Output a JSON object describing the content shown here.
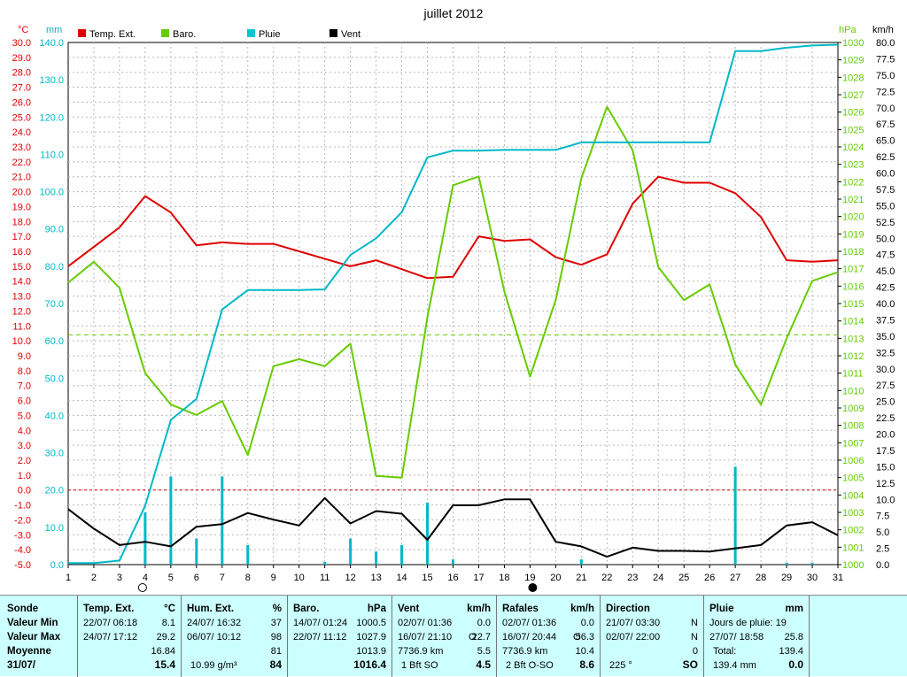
{
  "title": "juillet 2012",
  "axes": {
    "temp": {
      "unit": "°C",
      "min": -5,
      "max": 30,
      "step": 1,
      "color": "#e00000"
    },
    "rain": {
      "unit": "mm",
      "min": 0,
      "max": 140,
      "step": 10,
      "color": "#00b8c8"
    },
    "baro": {
      "unit": "hPa",
      "min": 1000,
      "max": 1030,
      "step": 1,
      "color": "#66cc00"
    },
    "wind": {
      "unit": "km/h",
      "min": 0,
      "max": 80,
      "step": 2.5,
      "color": "#000000"
    }
  },
  "legend": {
    "temp": {
      "label": "Temp. Ext.",
      "color": "#e00000"
    },
    "baro": {
      "label": "Baro.",
      "color": "#66cc00"
    },
    "rain": {
      "label": "Pluie",
      "color": "#00c8d0"
    },
    "wind": {
      "label": "Vent",
      "color": "#000000"
    }
  },
  "chart_data": {
    "type": "line",
    "title": "juillet 2012",
    "x": [
      1,
      2,
      3,
      4,
      5,
      6,
      7,
      8,
      9,
      10,
      11,
      12,
      13,
      14,
      15,
      16,
      17,
      18,
      19,
      20,
      21,
      22,
      23,
      24,
      25,
      26,
      27,
      28,
      29,
      30,
      31
    ],
    "xlim": [
      1,
      31
    ],
    "grid": true,
    "legend_position": "top-left",
    "series": [
      {
        "name": "Temp. Ext.",
        "axis": "temp",
        "color": "#e00000",
        "values": [
          15.0,
          16.3,
          17.6,
          19.7,
          18.6,
          16.4,
          16.6,
          16.5,
          16.5,
          16.0,
          15.5,
          15.0,
          15.4,
          14.8,
          14.2,
          14.3,
          17.0,
          16.7,
          16.8,
          15.6,
          15.1,
          15.8,
          19.2,
          21.0,
          20.6,
          20.6,
          19.9,
          18.3,
          15.4,
          15.3,
          15.4
        ]
      },
      {
        "name": "Baro.",
        "axis": "baro",
        "color": "#66cc00",
        "values": [
          1016.2,
          1017.4,
          1015.9,
          1011.0,
          1009.2,
          1008.6,
          1009.4,
          1006.3,
          1011.4,
          1011.8,
          1011.4,
          1012.7,
          1005.1,
          1005.0,
          1014.2,
          1021.8,
          1022.3,
          1015.7,
          1010.8,
          1015.2,
          1022.2,
          1026.3,
          1023.8,
          1017.1,
          1015.2,
          1016.1,
          1011.5,
          1009.2,
          1013.0,
          1016.3,
          1016.8
        ]
      },
      {
        "name": "Pluie",
        "axis": "rain",
        "color": "#00b8c8",
        "values": [
          0.4,
          0.4,
          1.1,
          15.8,
          38.8,
          44.4,
          68.4,
          73.6,
          73.6,
          73.6,
          73.8,
          83.0,
          87.5,
          94.5,
          109.2,
          111.0,
          111.0,
          111.2,
          111.2,
          111.2,
          113.2,
          113.2,
          113.2,
          113.2,
          113.2,
          113.2,
          137.7,
          137.7,
          138.6,
          139.2,
          139.4
        ]
      },
      {
        "name": "Vent",
        "axis": "wind",
        "color": "#000000",
        "values": [
          8.5,
          5.5,
          3.0,
          3.5,
          2.8,
          5.8,
          6.2,
          7.9,
          6.9,
          6.0,
          10.2,
          6.3,
          8.2,
          7.8,
          3.8,
          9.1,
          9.1,
          10.0,
          10.0,
          3.5,
          2.8,
          1.2,
          2.6,
          2.1,
          2.1,
          2.0,
          2.5,
          3.0,
          6.0,
          6.5,
          4.5
        ]
      }
    ],
    "rain_bars": {
      "name": "Pluie journalière",
      "axis": "wind",
      "values": [
        0,
        0,
        0,
        8.0,
        13.5,
        4.0,
        13.5,
        3.0,
        0,
        0,
        0.4,
        4.0,
        2.0,
        3.0,
        9.5,
        0.8,
        0,
        0,
        0,
        0,
        0.8,
        0,
        0,
        0,
        0,
        0,
        15.0,
        0,
        0.3,
        0.3,
        0
      ]
    },
    "baro_reference": 1013.2,
    "temp_zero_line": 0,
    "moon_phases": [
      {
        "day": 4,
        "phase": "pleine lune"
      },
      {
        "day": 19,
        "phase": "nouvelle lune"
      }
    ]
  },
  "summary": {
    "sonde": {
      "header": "Sonde",
      "rows": [
        "Valeur Min",
        "Valeur Max",
        "Moyenne",
        "31/07/"
      ]
    },
    "temp": {
      "header": "Temp. Ext.",
      "unit": "°C",
      "min_date": "22/07/ 06:18",
      "min_val": "8.1",
      "max_date": "24/07/ 17:12",
      "max_val": "29.2",
      "avg": "16.84",
      "current": "15.4"
    },
    "hum": {
      "header": "Hum. Ext.",
      "unit": "%",
      "min_date": "24/07/ 16:32",
      "min_val": "37",
      "max_date": "06/07/ 10:12",
      "max_val": "98",
      "avg": "81",
      "extra": "10.99 g/m³",
      "current": "84"
    },
    "baro": {
      "header": "Baro.",
      "unit": "hPa",
      "min_date": "14/07/ 01:24",
      "min_val": "1000.5",
      "max_date": "22/07/ 11:12",
      "max_val": "1027.9",
      "avg": "1013.9",
      "current": "1016.4"
    },
    "vent": {
      "header": "Vent",
      "unit": "km/h",
      "min_date": "02/07/ 01:36",
      "min_val": "0.0",
      "max_date": "16/07/ 21:10",
      "max_dir": "O",
      "max_val": "22.7",
      "dist": "7736.9 km",
      "avg": "5.5",
      "bft": "1 Bft SO",
      "current": "4.5"
    },
    "rafales": {
      "header": "Rafales",
      "unit": "km/h",
      "min_date": "02/07/ 01:36",
      "min_val": "0.0",
      "max_date": "16/07/ 20:44",
      "max_dir": "O",
      "max_val": "56.3",
      "dist": "7736.9 km",
      "avg": "10.4",
      "bft": "2 Bft O-SO",
      "current": "8.6"
    },
    "direction": {
      "header": "Direction",
      "min_date": "21/07/ 03:30",
      "min_val": "N",
      "max_date": "02/07/ 22:00",
      "max_val": "N",
      "avg": "0",
      "deg": "225 °",
      "current": "SO"
    },
    "pluie": {
      "header": "Pluie",
      "unit": "mm",
      "jours": "Jours de pluie: 19",
      "max_date": "27/07/ 18:58",
      "max_val": "25.8",
      "total_label": "Total:",
      "total": "139.4",
      "current_total": "139.4 mm",
      "current": "0.0"
    }
  }
}
